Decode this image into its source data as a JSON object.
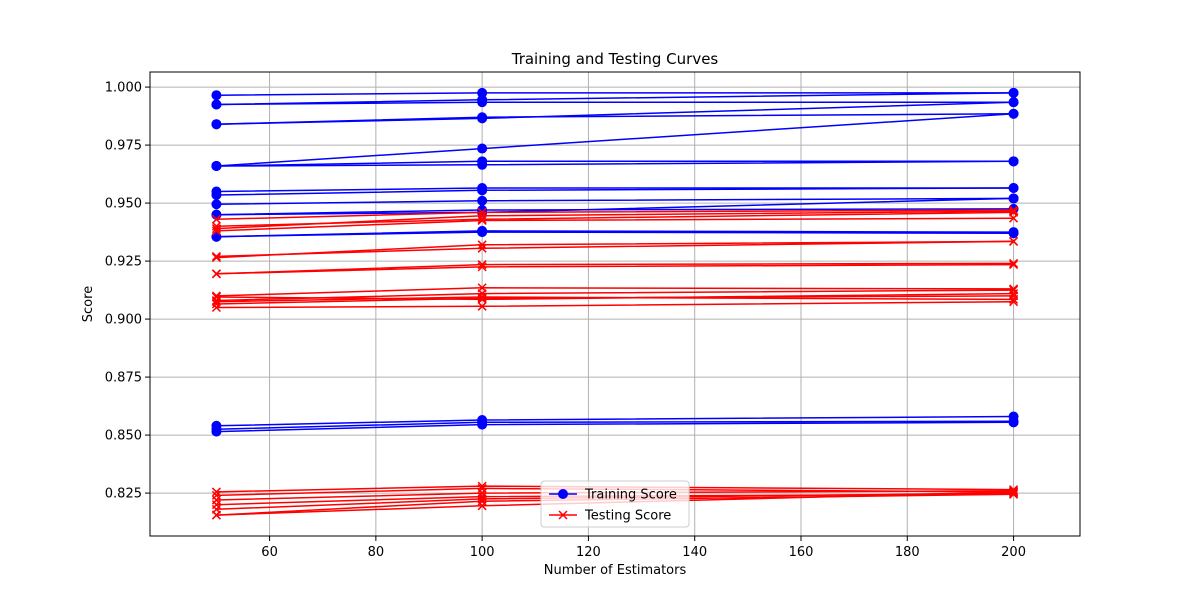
{
  "chart_data": {
    "type": "line",
    "title": "Training and Testing Curves",
    "xlabel": "Number of Estimators",
    "ylabel": "Score",
    "x": [
      50,
      100,
      200
    ],
    "xlim": [
      37.5,
      212.5
    ],
    "ylim": [
      0.8065,
      1.0065
    ],
    "xticks": [
      60,
      80,
      100,
      120,
      140,
      160,
      180,
      200
    ],
    "xtick_labels": [
      "60",
      "80",
      "100",
      "120",
      "140",
      "160",
      "180",
      "200"
    ],
    "yticks": [
      0.825,
      0.85,
      0.875,
      0.9,
      0.925,
      0.95,
      0.975,
      1.0
    ],
    "ytick_labels": [
      "0.825",
      "0.850",
      "0.875",
      "0.900",
      "0.925",
      "0.950",
      "0.975",
      "1.000"
    ],
    "grid": true,
    "legend_position": "lower-center",
    "series": [
      {
        "name": "Training Score",
        "group": "train",
        "values": [
          0.9965,
          0.9975,
          0.9975
        ]
      },
      {
        "name": "Training Score",
        "group": "train",
        "values": [
          0.9925,
          0.9935,
          0.9935
        ]
      },
      {
        "name": "Training Score",
        "group": "train",
        "values": [
          0.9925,
          0.9945,
          0.9975
        ]
      },
      {
        "name": "Training Score",
        "group": "train",
        "values": [
          0.984,
          0.987,
          0.9885
        ]
      },
      {
        "name": "Training Score",
        "group": "train",
        "values": [
          0.984,
          0.9865,
          0.9935
        ]
      },
      {
        "name": "Training Score",
        "group": "train",
        "values": [
          0.966,
          0.968,
          0.968
        ]
      },
      {
        "name": "Training Score",
        "group": "train",
        "values": [
          0.966,
          0.9665,
          0.968
        ]
      },
      {
        "name": "Training Score",
        "group": "train",
        "values": [
          0.966,
          0.9735,
          0.9885
        ]
      },
      {
        "name": "Training Score",
        "group": "train",
        "values": [
          0.955,
          0.9565,
          0.9565
        ]
      },
      {
        "name": "Training Score",
        "group": "train",
        "values": [
          0.9535,
          0.9555,
          0.9565
        ]
      },
      {
        "name": "Training Score",
        "group": "train",
        "values": [
          0.9495,
          0.951,
          0.952
        ]
      },
      {
        "name": "Training Score",
        "group": "train",
        "values": [
          0.945,
          0.947,
          0.9475
        ]
      },
      {
        "name": "Training Score",
        "group": "train",
        "values": [
          0.945,
          0.946,
          0.952
        ]
      },
      {
        "name": "Training Score",
        "group": "train",
        "values": [
          0.9355,
          0.938,
          0.9375
        ]
      },
      {
        "name": "Training Score",
        "group": "train",
        "values": [
          0.9355,
          0.9375,
          0.937
        ]
      },
      {
        "name": "Training Score",
        "group": "train",
        "values": [
          0.854,
          0.8565,
          0.858
        ]
      },
      {
        "name": "Training Score",
        "group": "train",
        "values": [
          0.8525,
          0.8555,
          0.856
        ]
      },
      {
        "name": "Training Score",
        "group": "train",
        "values": [
          0.8515,
          0.8545,
          0.8555
        ]
      },
      {
        "name": "Testing Score",
        "group": "test",
        "values": [
          0.943,
          0.946,
          0.947
        ]
      },
      {
        "name": "Testing Score",
        "group": "test",
        "values": [
          0.94,
          0.943,
          0.946
        ]
      },
      {
        "name": "Testing Score",
        "group": "test",
        "values": [
          0.939,
          0.9445,
          0.9465
        ]
      },
      {
        "name": "Testing Score",
        "group": "test",
        "values": [
          0.938,
          0.9425,
          0.9435
        ]
      },
      {
        "name": "Testing Score",
        "group": "test",
        "values": [
          0.927,
          0.9305,
          0.9335
        ]
      },
      {
        "name": "Testing Score",
        "group": "test",
        "values": [
          0.9265,
          0.932,
          0.9335
        ]
      },
      {
        "name": "Testing Score",
        "group": "test",
        "values": [
          0.9195,
          0.9235,
          0.924
        ]
      },
      {
        "name": "Testing Score",
        "group": "test",
        "values": [
          0.9195,
          0.9225,
          0.9235
        ]
      },
      {
        "name": "Testing Score",
        "group": "test",
        "values": [
          0.91,
          0.9135,
          0.913
        ]
      },
      {
        "name": "Testing Score",
        "group": "test",
        "values": [
          0.9095,
          0.9085,
          0.911
        ]
      },
      {
        "name": "Testing Score",
        "group": "test",
        "values": [
          0.908,
          0.911,
          0.9125
        ]
      },
      {
        "name": "Testing Score",
        "group": "test",
        "values": [
          0.9075,
          0.9095,
          0.9085
        ]
      },
      {
        "name": "Testing Score",
        "group": "test",
        "values": [
          0.9065,
          0.909,
          0.91
        ]
      },
      {
        "name": "Testing Score",
        "group": "test",
        "values": [
          0.905,
          0.9055,
          0.9075
        ]
      },
      {
        "name": "Testing Score",
        "group": "test",
        "values": [
          0.8255,
          0.828,
          0.8265
        ]
      },
      {
        "name": "Testing Score",
        "group": "test",
        "values": [
          0.824,
          0.827,
          0.8255
        ]
      },
      {
        "name": "Testing Score",
        "group": "test",
        "values": [
          0.822,
          0.825,
          0.826
        ]
      },
      {
        "name": "Testing Score",
        "group": "test",
        "values": [
          0.82,
          0.8235,
          0.8245
        ]
      },
      {
        "name": "Testing Score",
        "group": "test",
        "values": [
          0.818,
          0.8225,
          0.825
        ]
      },
      {
        "name": "Testing Score",
        "group": "test",
        "values": [
          0.8155,
          0.8195,
          0.8255
        ]
      },
      {
        "name": "Testing Score",
        "group": "test",
        "values": [
          0.8155,
          0.8215,
          0.8245
        ]
      }
    ],
    "legend": [
      {
        "label": "Training Score",
        "group": "train"
      },
      {
        "label": "Testing Score",
        "group": "test"
      }
    ],
    "colors": {
      "train": "#0000ff",
      "test": "#ff0000",
      "grid": "#b0b0b0"
    },
    "markers": {
      "train": "circle",
      "test": "x"
    }
  }
}
